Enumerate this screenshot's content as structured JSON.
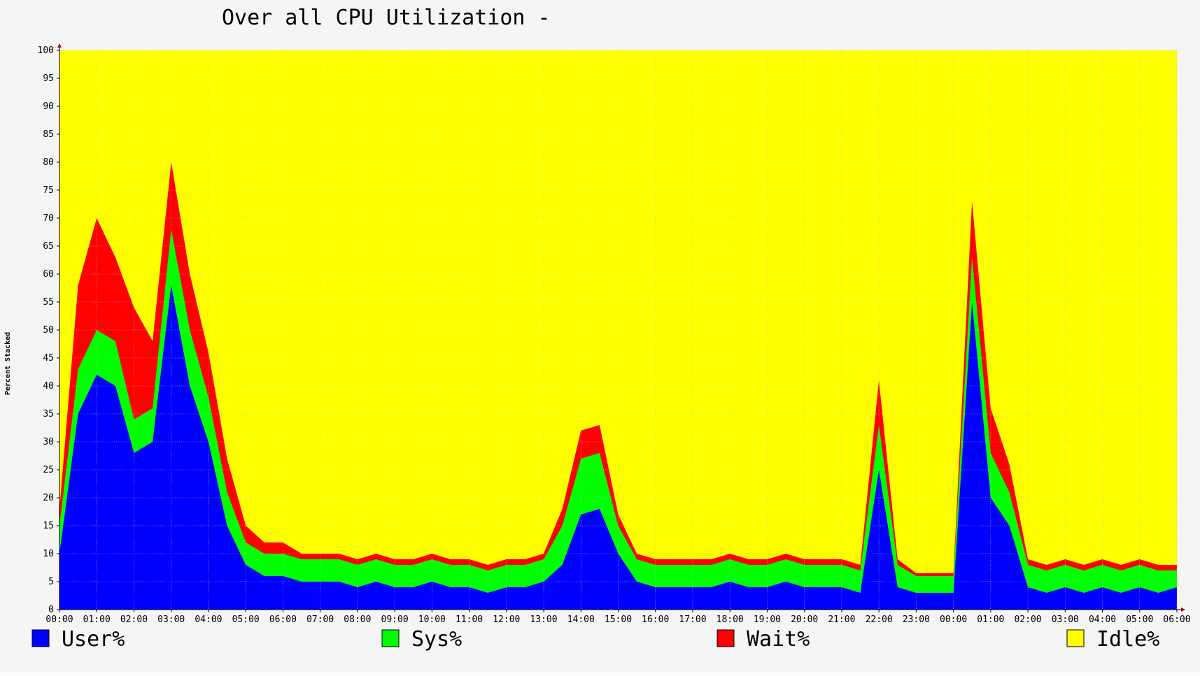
{
  "chart_data": {
    "type": "area",
    "stacked": true,
    "title": "Over all CPU Utilization -",
    "ylabel": "Percent Stacked",
    "xlabel": "",
    "ylim": [
      0,
      100
    ],
    "yticks": [
      0,
      5,
      10,
      15,
      20,
      25,
      30,
      35,
      40,
      45,
      50,
      55,
      60,
      65,
      70,
      75,
      80,
      85,
      90,
      95,
      100
    ],
    "xtick_labels": [
      "00:00",
      "01:00",
      "02:00",
      "03:00",
      "04:00",
      "05:00",
      "06:00",
      "07:00",
      "08:00",
      "09:00",
      "10:00",
      "11:00",
      "12:00",
      "13:00",
      "14:00",
      "15:00",
      "16:00",
      "17:00",
      "18:00",
      "19:00",
      "20:00",
      "21:00",
      "22:00",
      "23:00",
      "00:00",
      "01:00",
      "02:00",
      "03:00",
      "04:00",
      "05:00",
      "06:00"
    ],
    "x_unit": "hours since start (30 h window)",
    "grid": true,
    "legend_position": "bottom",
    "series": [
      {
        "name": "User%",
        "color": "#0000ff",
        "x": [
          0,
          0.5,
          1,
          1.5,
          2,
          2.5,
          3,
          3.5,
          4,
          4.5,
          5,
          5.5,
          6,
          6.5,
          7,
          7.5,
          8,
          8.5,
          9,
          9.5,
          10,
          10.5,
          11,
          11.5,
          12,
          12.5,
          13,
          13.5,
          14,
          14.5,
          15,
          15.5,
          16,
          16.5,
          17,
          17.5,
          18,
          18.5,
          19,
          19.5,
          20,
          20.5,
          21,
          21.5,
          22,
          22.5,
          23,
          23.5,
          24,
          24.5,
          25,
          25.5,
          26,
          26.5,
          27,
          27.5,
          28,
          28.5,
          29,
          29.5,
          30
        ],
        "values": [
          10,
          35,
          42,
          40,
          28,
          30,
          58,
          40,
          30,
          15,
          8,
          6,
          6,
          5,
          5,
          5,
          4,
          5,
          4,
          4,
          5,
          4,
          4,
          3,
          4,
          4,
          5,
          8,
          17,
          18,
          10,
          5,
          4,
          4,
          4,
          4,
          5,
          4,
          4,
          5,
          4,
          4,
          4,
          3,
          25,
          4,
          3,
          3,
          3,
          55,
          20,
          15,
          4,
          3,
          4,
          3,
          4,
          3,
          4,
          3,
          4
        ]
      },
      {
        "name": "Sys%",
        "color": "#00ff00",
        "x": [
          0,
          0.5,
          1,
          1.5,
          2,
          2.5,
          3,
          3.5,
          4,
          4.5,
          5,
          5.5,
          6,
          6.5,
          7,
          7.5,
          8,
          8.5,
          9,
          9.5,
          10,
          10.5,
          11,
          11.5,
          12,
          12.5,
          13,
          13.5,
          14,
          14.5,
          15,
          15.5,
          16,
          16.5,
          17,
          17.5,
          18,
          18.5,
          19,
          19.5,
          20,
          20.5,
          21,
          21.5,
          22,
          22.5,
          23,
          23.5,
          24,
          24.5,
          25,
          25.5,
          26,
          26.5,
          27,
          27.5,
          28,
          28.5,
          29,
          29.5,
          30
        ],
        "values": [
          5,
          8,
          8,
          8,
          6,
          6,
          10,
          10,
          8,
          6,
          4,
          4,
          4,
          4,
          4,
          4,
          4,
          4,
          4,
          4,
          4,
          4,
          4,
          4,
          4,
          4,
          4,
          7,
          10,
          10,
          5,
          4,
          4,
          4,
          4,
          4,
          4,
          4,
          4,
          4,
          4,
          4,
          4,
          4,
          8,
          4,
          3,
          3,
          3,
          8,
          8,
          6,
          4,
          4,
          4,
          4,
          4,
          4,
          4,
          4,
          3
        ]
      },
      {
        "name": "Wait%",
        "color": "#ff0000",
        "x": [
          0,
          0.5,
          1,
          1.5,
          2,
          2.5,
          3,
          3.5,
          4,
          4.5,
          5,
          5.5,
          6,
          6.5,
          7,
          7.5,
          8,
          8.5,
          9,
          9.5,
          10,
          10.5,
          11,
          11.5,
          12,
          12.5,
          13,
          13.5,
          14,
          14.5,
          15,
          15.5,
          16,
          16.5,
          17,
          17.5,
          18,
          18.5,
          19,
          19.5,
          20,
          20.5,
          21,
          21.5,
          22,
          22.5,
          23,
          23.5,
          24,
          24.5,
          25,
          25.5,
          26,
          26.5,
          27,
          27.5,
          28,
          28.5,
          29,
          29.5,
          30
        ],
        "values": [
          3,
          15,
          20,
          15,
          20,
          12,
          12,
          10,
          8,
          6,
          3,
          2,
          2,
          1,
          1,
          1,
          1,
          1,
          1,
          1,
          1,
          1,
          1,
          1,
          1,
          1,
          1,
          3,
          5,
          5,
          2,
          1,
          1,
          1,
          1,
          1,
          1,
          1,
          1,
          1,
          1,
          1,
          1,
          1,
          8,
          1,
          0.5,
          0.5,
          0.5,
          10,
          8,
          5,
          1,
          1,
          1,
          1,
          1,
          1,
          1,
          1,
          1
        ]
      },
      {
        "name": "Idle%",
        "color": "#ffff00",
        "note": "remainder to 100"
      }
    ]
  },
  "legend": [
    {
      "label": "User%",
      "color": "#0000ff"
    },
    {
      "label": "Sys%",
      "color": "#00ff00"
    },
    {
      "label": "Wait%",
      "color": "#ff0000"
    },
    {
      "label": "Idle%",
      "color": "#ffff00"
    }
  ]
}
